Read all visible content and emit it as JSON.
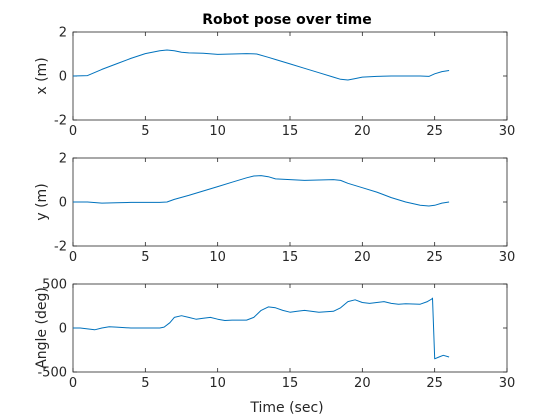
{
  "figure": {
    "title": "Robot pose over time",
    "xlabel": "Time (sec)"
  },
  "style": {
    "line_color": "#0072bd",
    "axis_color": "#262626",
    "background": "#ffffff"
  },
  "chart_data": [
    {
      "type": "line",
      "title": "Robot pose over time",
      "ylabel": "x (m)",
      "xlabel": "",
      "xlim": [
        0,
        30
      ],
      "ylim": [
        -2,
        2
      ],
      "xticks": [
        0,
        5,
        10,
        15,
        20,
        25,
        30
      ],
      "yticks": [
        -2,
        0,
        2
      ],
      "grid": false,
      "series": [
        {
          "x": [
            0,
            1,
            2,
            3,
            4,
            5,
            6,
            6.5,
            7,
            7.5,
            8,
            9,
            10,
            11,
            12,
            12.7,
            13.5,
            14,
            15,
            16,
            17,
            18,
            18.5,
            19,
            19.5,
            20,
            21,
            22,
            23,
            24,
            24.6,
            25,
            25.5,
            26
          ],
          "y": [
            0,
            0.02,
            0.3,
            0.55,
            0.8,
            1.02,
            1.15,
            1.18,
            1.15,
            1.08,
            1.05,
            1.03,
            0.98,
            1.0,
            1.02,
            1.0,
            0.85,
            0.75,
            0.55,
            0.35,
            0.15,
            -0.05,
            -0.15,
            -0.18,
            -0.12,
            -0.05,
            -0.02,
            0.0,
            0.0,
            0.0,
            -0.02,
            0.1,
            0.2,
            0.25
          ]
        }
      ]
    },
    {
      "type": "line",
      "ylabel": "y (m)",
      "xlabel": "",
      "xlim": [
        0,
        30
      ],
      "ylim": [
        -2,
        2
      ],
      "xticks": [
        0,
        5,
        10,
        15,
        20,
        25,
        30
      ],
      "yticks": [
        -2,
        0,
        2
      ],
      "grid": false,
      "series": [
        {
          "x": [
            0,
            1,
            2,
            3,
            4,
            5,
            6,
            6.5,
            7,
            8,
            9,
            10,
            11,
            12,
            12.5,
            13,
            13.5,
            14,
            15,
            16,
            17,
            18,
            18.5,
            19,
            20,
            21,
            22,
            23,
            24,
            24.6,
            25,
            25.5,
            26
          ],
          "y": [
            0,
            0,
            -0.05,
            -0.03,
            -0.02,
            -0.02,
            -0.02,
            0,
            0.12,
            0.3,
            0.5,
            0.7,
            0.9,
            1.1,
            1.18,
            1.2,
            1.15,
            1.05,
            1.02,
            0.98,
            1.0,
            1.02,
            0.98,
            0.85,
            0.65,
            0.45,
            0.2,
            0.0,
            -0.15,
            -0.18,
            -0.15,
            -0.05,
            0.0
          ]
        }
      ]
    },
    {
      "type": "line",
      "ylabel": "Angle (deg)",
      "xlabel": "Time (sec)",
      "xlim": [
        0,
        30
      ],
      "ylim": [
        -500,
        500
      ],
      "xticks": [
        0,
        5,
        10,
        15,
        20,
        25,
        30
      ],
      "yticks": [
        -500,
        0,
        500
      ],
      "grid": false,
      "series": [
        {
          "x": [
            0,
            0.5,
            1,
            1.5,
            2,
            2.5,
            3,
            4,
            5,
            6,
            6.3,
            6.7,
            7,
            7.5,
            8,
            8.5,
            9,
            9.5,
            10,
            10.5,
            11,
            12,
            12.5,
            13,
            13.5,
            14,
            14.5,
            15,
            15.5,
            16,
            17,
            18,
            18.5,
            19,
            19.5,
            20,
            20.5,
            21,
            21.5,
            22,
            22.5,
            23,
            24,
            24.5,
            24.8,
            24.85,
            25,
            25.3,
            25.6,
            26
          ],
          "y": [
            0,
            0,
            -10,
            -20,
            0,
            15,
            10,
            0,
            0,
            0,
            10,
            60,
            120,
            140,
            120,
            100,
            110,
            120,
            100,
            85,
            90,
            90,
            120,
            200,
            240,
            230,
            200,
            180,
            190,
            200,
            180,
            190,
            230,
            300,
            320,
            290,
            280,
            290,
            300,
            280,
            270,
            275,
            270,
            300,
            330,
            340,
            -350,
            -330,
            -310,
            -330
          ]
        }
      ]
    }
  ]
}
